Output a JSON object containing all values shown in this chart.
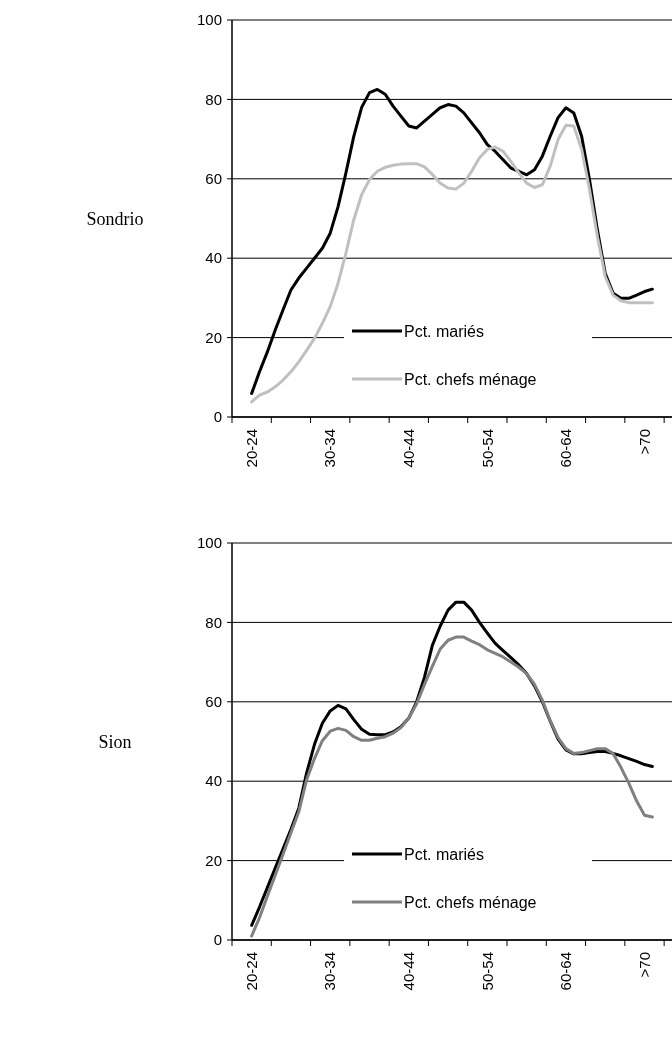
{
  "chart_data": [
    {
      "type": "line",
      "title": "Sondrio",
      "ylim": [
        0,
        100
      ],
      "yticks": [
        0,
        20,
        40,
        60,
        80,
        100
      ],
      "grid": "y",
      "legend": "bottom",
      "categories": [
        "20-24",
        null,
        null,
        null,
        null,
        null,
        null,
        null,
        null,
        null,
        "30-34",
        null,
        null,
        null,
        null,
        null,
        null,
        null,
        null,
        null,
        "40-44",
        null,
        null,
        null,
        null,
        null,
        null,
        null,
        null,
        null,
        "50-54",
        null,
        null,
        null,
        null,
        null,
        null,
        null,
        null,
        null,
        "60-64",
        null,
        null,
        null,
        null,
        null,
        null,
        null,
        null,
        null,
        ">70",
        null
      ],
      "series": [
        {
          "name": "Pct. mariés",
          "color": "#000000",
          "values": [
            5.9,
            11.4,
            16.4,
            21.9,
            27,
            32,
            35,
            37.5,
            40,
            42.5,
            46.3,
            53,
            61.5,
            70.7,
            78,
            81.7,
            82.5,
            81.3,
            78.3,
            75.8,
            73.3,
            72.8,
            74.5,
            76.2,
            77.9,
            78.7,
            78.3,
            76.6,
            74.1,
            71.6,
            68.6,
            66.9,
            64.8,
            62.7,
            61.9,
            61,
            62.3,
            65.7,
            70.7,
            75.4,
            77.9,
            76.6,
            70.7,
            59.8,
            47.2,
            36.2,
            31.2,
            29.9,
            29.9,
            30.7,
            31.6,
            32.2
          ]
        },
        {
          "name": "Pct. chefs ménage",
          "color": "#c0c0c0",
          "values": [
            3.8,
            5.5,
            6.3,
            7.6,
            9.3,
            11.4,
            13.9,
            16.8,
            19.8,
            23.6,
            27.8,
            33.7,
            41.3,
            49.7,
            56,
            59.8,
            61.9,
            62.9,
            63.4,
            63.7,
            63.8,
            63.8,
            63,
            61.1,
            58.9,
            57.7,
            57.4,
            58.9,
            61.9,
            65.3,
            67.4,
            68,
            66.9,
            64.4,
            61.5,
            58.9,
            57.8,
            58.5,
            63.2,
            69.9,
            73.5,
            73.3,
            67.4,
            57.3,
            45.5,
            35.4,
            30.7,
            29.3,
            28.8,
            28.8,
            28.8,
            28.8
          ]
        }
      ]
    },
    {
      "type": "line",
      "title": "Sion",
      "ylim": [
        0,
        100
      ],
      "yticks": [
        0,
        20,
        40,
        60,
        80,
        100
      ],
      "grid": "y",
      "legend": "bottom",
      "categories": [
        "20-24",
        null,
        null,
        null,
        null,
        null,
        null,
        null,
        null,
        null,
        "30-34",
        null,
        null,
        null,
        null,
        null,
        null,
        null,
        null,
        null,
        "40-44",
        null,
        null,
        null,
        null,
        null,
        null,
        null,
        null,
        null,
        "50-54",
        null,
        null,
        null,
        null,
        null,
        null,
        null,
        null,
        null,
        "60-64",
        null,
        null,
        null,
        null,
        null,
        null,
        null,
        null,
        null,
        ">70",
        null
      ],
      "series": [
        {
          "name": "Pct. mariés",
          "color": "#000000",
          "values": [
            3.7,
            8.3,
            13.2,
            18.1,
            23,
            27.9,
            33.2,
            42.1,
            49.3,
            54.6,
            57.7,
            59.1,
            58.2,
            55.5,
            53.1,
            51.8,
            51.7,
            51.7,
            52.4,
            53.7,
            55.9,
            60,
            66.2,
            74.2,
            79.1,
            83.1,
            85.1,
            85.1,
            83.1,
            80,
            77.3,
            74.7,
            72.9,
            71.1,
            69.3,
            67.1,
            64,
            60,
            55.1,
            50.6,
            47.9,
            46.9,
            46.9,
            47.2,
            47.5,
            47.5,
            47,
            46.4,
            45.7,
            45,
            44.2,
            43.7
          ]
        },
        {
          "name": "Pct. chefs ménage",
          "color": "#808080",
          "values": [
            1,
            5.6,
            11,
            16.3,
            21.6,
            27,
            32.3,
            40.4,
            45.7,
            50.2,
            52.6,
            53.3,
            52.8,
            51.2,
            50.3,
            50.3,
            50.8,
            51.2,
            52.1,
            53.5,
            55.9,
            59.5,
            64.4,
            68.9,
            73.3,
            75.5,
            76.3,
            76.3,
            75.3,
            74.4,
            73.1,
            72.2,
            71.3,
            70,
            68.7,
            67.1,
            64.4,
            60.4,
            55.3,
            51,
            48.2,
            47,
            47.2,
            47.7,
            48.2,
            48.2,
            47,
            43.5,
            39.5,
            35,
            31.4,
            31
          ]
        }
      ]
    }
  ]
}
